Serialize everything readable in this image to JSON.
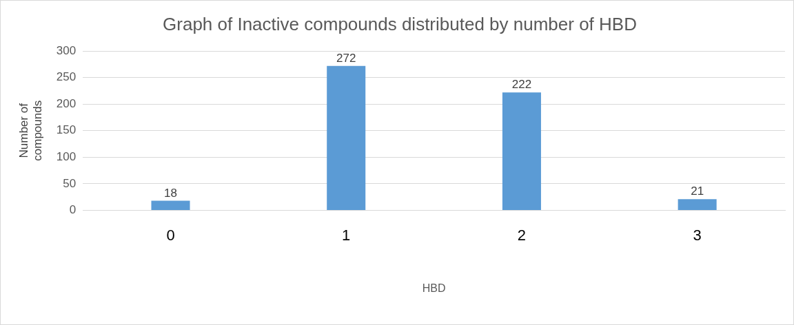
{
  "chart_data": {
    "type": "bar",
    "title": "Graph of Inactive compounds distributed by number of HBD",
    "xlabel": "HBD",
    "ylabel": "Number of compounds",
    "categories": [
      "0",
      "1",
      "2",
      "3"
    ],
    "values": [
      18,
      272,
      222,
      21
    ],
    "color": "#5b9bd5",
    "ylim": [
      0,
      300
    ],
    "yticks": [
      0,
      50,
      100,
      150,
      200,
      250,
      300
    ],
    "grid": "y",
    "data_labels": true,
    "legend": false
  }
}
